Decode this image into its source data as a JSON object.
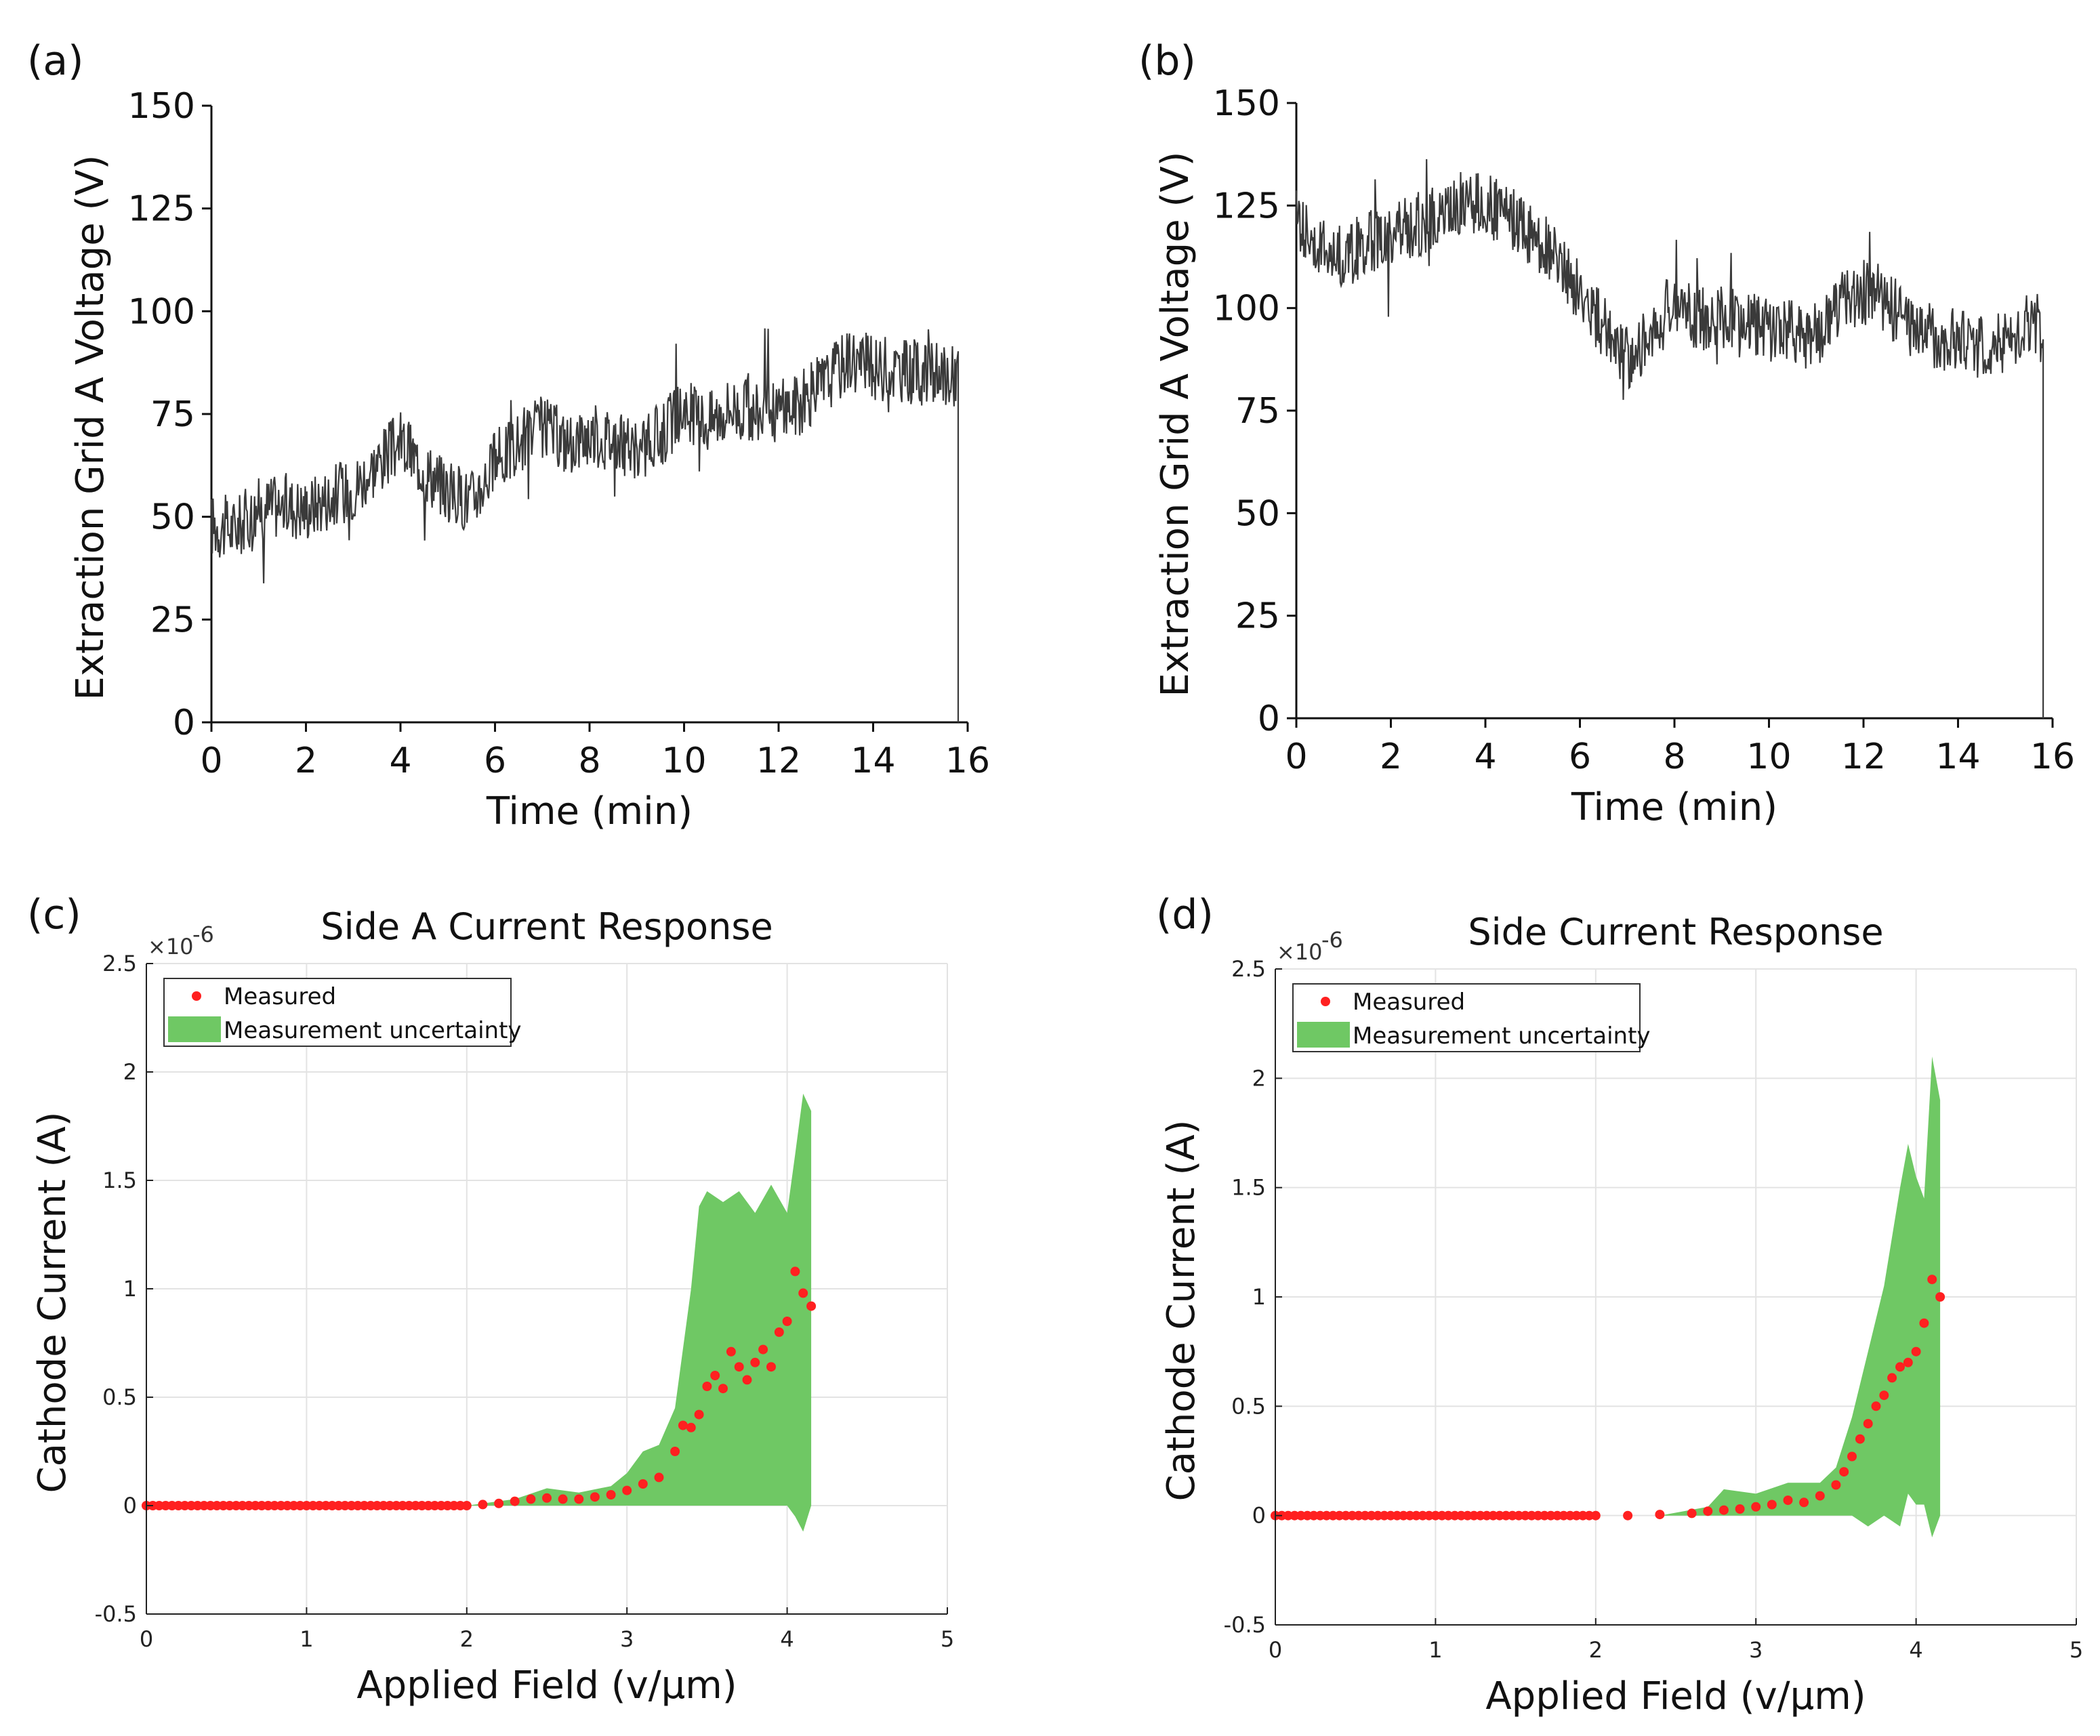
{
  "chart_data": [
    {
      "panel_label": "(a)",
      "type": "line",
      "title": "",
      "xlabel": "Time (min)",
      "ylabel": "Extraction Grid A Voltage (V)",
      "xlim": [
        0,
        16
      ],
      "ylim": [
        0,
        150
      ],
      "xticks": [
        "0",
        "2",
        "4",
        "6",
        "8",
        "10",
        "12",
        "14",
        "16"
      ],
      "yticks": [
        "0",
        "25",
        "50",
        "75",
        "100",
        "125",
        "150"
      ],
      "grid": false,
      "line_color": "#3a3a3a",
      "series": [
        {
          "x": [
            0,
            0.5,
            1,
            1.5,
            2,
            2.5,
            3,
            3.5,
            4,
            4.5,
            5,
            5.5,
            6,
            6.5,
            7,
            7.5,
            8,
            8.5,
            9,
            9.5,
            10,
            10.5,
            11,
            11.5,
            12,
            12.5,
            13,
            13.5,
            14,
            14.5,
            15,
            15.5,
            15.8
          ],
          "values": [
            48,
            47,
            52,
            53,
            52,
            55,
            57,
            63,
            68,
            62,
            56,
            54,
            63,
            68,
            72,
            68,
            70,
            69,
            65,
            70,
            76,
            73,
            77,
            75,
            76,
            78,
            83,
            89,
            86,
            86,
            85,
            84,
            85
          ]
        }
      ]
    },
    {
      "panel_label": "(b)",
      "type": "line",
      "title": "",
      "xlabel": "Time (min)",
      "ylabel": "Extraction Grid A Voltage (V)",
      "xlim": [
        0,
        16
      ],
      "ylim": [
        0,
        150
      ],
      "xticks": [
        "0",
        "2",
        "4",
        "6",
        "8",
        "10",
        "12",
        "14",
        "16"
      ],
      "yticks": [
        "0",
        "25",
        "50",
        "75",
        "100",
        "125",
        "150"
      ],
      "grid": false,
      "line_color": "#3a3a3a",
      "series": [
        {
          "x": [
            0,
            0.5,
            1,
            1.5,
            2,
            2.5,
            3,
            3.5,
            4,
            4.5,
            5,
            5.5,
            6,
            6.5,
            7,
            7.5,
            8,
            8.5,
            9,
            9.5,
            10,
            10.5,
            11,
            11.5,
            12,
            12.5,
            13,
            13.5,
            14,
            14.5,
            15,
            15.5,
            15.8
          ],
          "values": [
            122,
            115,
            112,
            116,
            118,
            120,
            122,
            126,
            125,
            122,
            118,
            112,
            104,
            95,
            88,
            93,
            102,
            97,
            98,
            96,
            95,
            94,
            92,
            101,
            104,
            101,
            96,
            93,
            92,
            91,
            92,
            96,
            92
          ]
        }
      ]
    },
    {
      "panel_label": "(c)",
      "type": "scatter",
      "title": "Side A Current Response",
      "xlabel": "Applied Field (v/μm)",
      "ylabel": "Cathode Current (A)",
      "exponent_label": "×10",
      "exponent_power": "-6",
      "xlim": [
        0,
        5
      ],
      "ylim": [
        -0.5,
        2.5
      ],
      "xticks": [
        "0",
        "1",
        "2",
        "3",
        "4",
        "5"
      ],
      "yticks": [
        "-0.5",
        "0",
        "0.5",
        "1",
        "1.5",
        "2",
        "2.5"
      ],
      "grid": true,
      "legend_position": "top-left",
      "legend": [
        "Measured",
        "Measurement uncertainty"
      ],
      "marker_color": "#ff2020",
      "band_color": "#6fc864",
      "series": [
        {
          "name": "Measured",
          "x": [
            0,
            0.2,
            0.4,
            0.6,
            0.8,
            1.0,
            1.2,
            1.4,
            1.6,
            1.8,
            2.0,
            2.1,
            2.2,
            2.3,
            2.4,
            2.5,
            2.6,
            2.7,
            2.8,
            2.9,
            3.0,
            3.1,
            3.2,
            3.3,
            3.35,
            3.4,
            3.45,
            3.5,
            3.55,
            3.6,
            3.65,
            3.7,
            3.75,
            3.8,
            3.85,
            3.9,
            3.95,
            4.0,
            4.05,
            4.1,
            4.15
          ],
          "values": [
            0,
            0,
            0,
            0,
            0,
            0,
            0,
            0,
            0,
            0,
            0,
            0.005,
            0.01,
            0.02,
            0.03,
            0.035,
            0.03,
            0.03,
            0.04,
            0.05,
            0.07,
            0.1,
            0.13,
            0.25,
            0.37,
            0.36,
            0.42,
            0.55,
            0.6,
            0.54,
            0.71,
            0.64,
            0.58,
            0.66,
            0.72,
            0.64,
            0.8,
            0.85,
            1.08,
            0.98,
            0.92
          ]
        },
        {
          "name": "Measurement uncertainty",
          "x": [
            2.0,
            2.3,
            2.5,
            2.7,
            2.9,
            3.0,
            3.1,
            3.2,
            3.3,
            3.4,
            3.45,
            3.5,
            3.6,
            3.7,
            3.8,
            3.9,
            4.0,
            4.05,
            4.1,
            4.15
          ],
          "upper": [
            0,
            0.03,
            0.08,
            0.06,
            0.09,
            0.15,
            0.25,
            0.28,
            0.45,
            1.0,
            1.38,
            1.45,
            1.4,
            1.45,
            1.35,
            1.48,
            1.35,
            1.62,
            1.9,
            1.82
          ],
          "lower": [
            0,
            0,
            0,
            0,
            0,
            0,
            0,
            0,
            0,
            0,
            0,
            0,
            0,
            0,
            0,
            0,
            0,
            -0.05,
            -0.12,
            0
          ]
        }
      ]
    },
    {
      "panel_label": "(d)",
      "type": "scatter",
      "title": "Side  Current Response",
      "xlabel": "Applied Field (v/μm)",
      "ylabel": "Cathode Current (A)",
      "exponent_label": "×10",
      "exponent_power": "-6",
      "xlim": [
        0,
        5
      ],
      "ylim": [
        -0.5,
        2.5
      ],
      "xticks": [
        "0",
        "1",
        "2",
        "3",
        "4",
        "5"
      ],
      "yticks": [
        "-0.5",
        "0",
        "0.5",
        "1",
        "1.5",
        "2",
        "2.5"
      ],
      "grid": true,
      "legend_position": "top-left",
      "legend": [
        "Measured",
        "Measurement uncertainty"
      ],
      "marker_color": "#ff2020",
      "band_color": "#6fc864",
      "series": [
        {
          "name": "Measured",
          "x": [
            0,
            0.2,
            0.4,
            0.6,
            0.8,
            1.0,
            1.2,
            1.4,
            1.6,
            1.8,
            2.0,
            2.2,
            2.4,
            2.6,
            2.7,
            2.8,
            2.9,
            3.0,
            3.1,
            3.2,
            3.3,
            3.4,
            3.5,
            3.55,
            3.6,
            3.65,
            3.7,
            3.75,
            3.8,
            3.85,
            3.9,
            3.95,
            4.0,
            4.05,
            4.1,
            4.15
          ],
          "values": [
            0,
            0,
            0,
            0,
            0,
            0,
            0,
            0,
            0,
            0,
            0,
            0,
            0.005,
            0.01,
            0.02,
            0.025,
            0.03,
            0.04,
            0.05,
            0.07,
            0.06,
            0.09,
            0.14,
            0.2,
            0.27,
            0.35,
            0.42,
            0.5,
            0.55,
            0.63,
            0.68,
            0.7,
            0.75,
            0.88,
            1.08,
            1.0
          ]
        },
        {
          "name": "Measurement uncertainty",
          "x": [
            2.4,
            2.7,
            2.8,
            3.0,
            3.2,
            3.4,
            3.5,
            3.6,
            3.7,
            3.8,
            3.9,
            3.95,
            4.0,
            4.05,
            4.1,
            4.15
          ],
          "upper": [
            0,
            0.04,
            0.12,
            0.1,
            0.15,
            0.15,
            0.22,
            0.45,
            0.75,
            1.05,
            1.5,
            1.7,
            1.55,
            1.45,
            2.1,
            1.9
          ],
          "lower": [
            0,
            0,
            0,
            0,
            0,
            0,
            0,
            0,
            -0.05,
            0,
            -0.05,
            0.1,
            0.05,
            0.05,
            -0.1,
            0
          ]
        }
      ]
    }
  ]
}
